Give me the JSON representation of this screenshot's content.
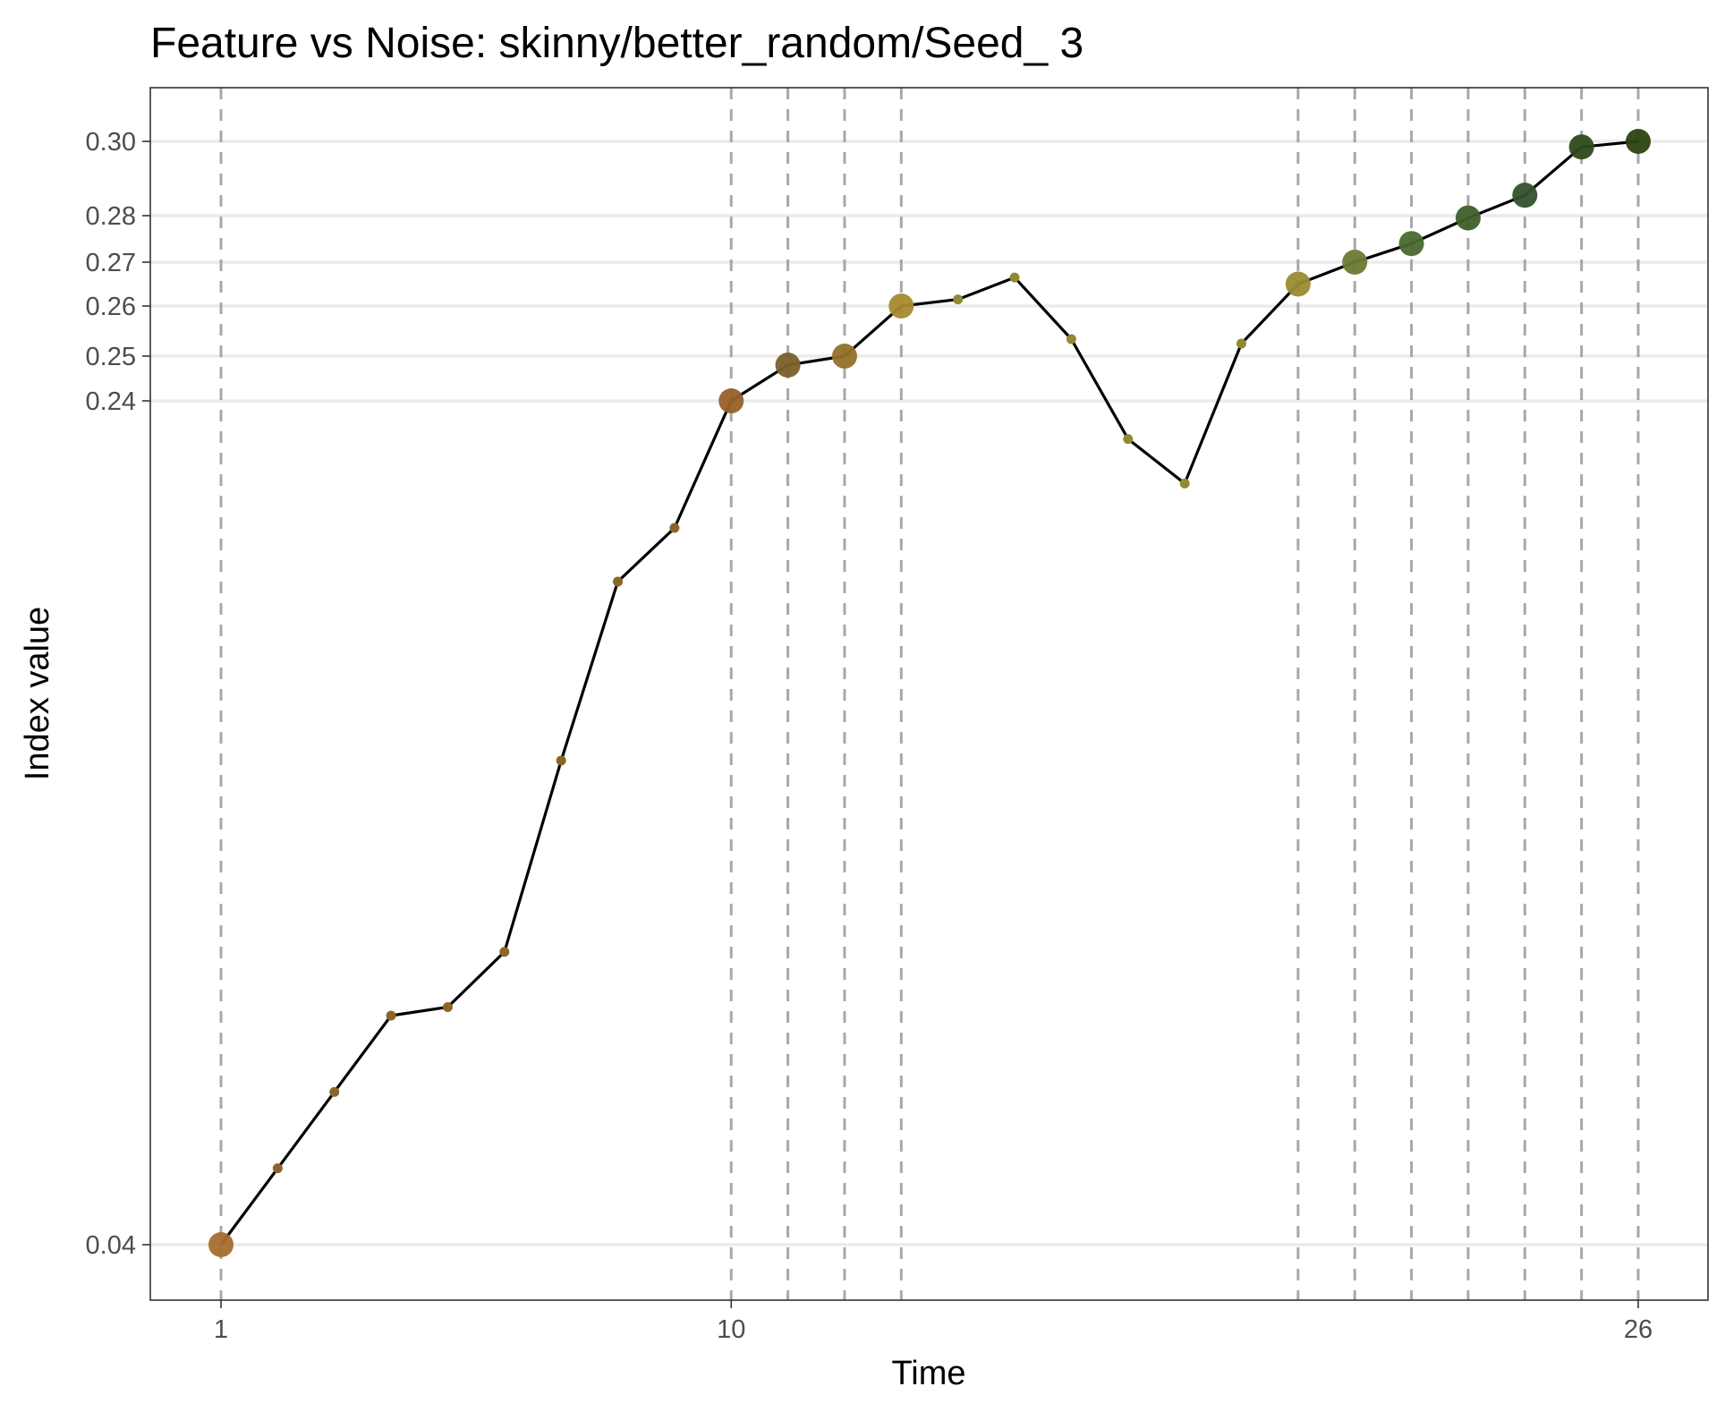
{
  "chart_data": {
    "type": "line",
    "title": "Feature vs Noise: skinny/better_random/Seed_ 3",
    "xlabel": "Time",
    "ylabel": "Index value",
    "x_ticks": [
      1,
      10,
      26
    ],
    "y_ticks": [
      "0.04",
      "0.24",
      "0.25",
      "0.26",
      "0.27",
      "0.28",
      "0.30"
    ],
    "xlim": [
      1,
      26
    ],
    "ylim": [
      0.04,
      0.3
    ],
    "y_scale": "nonlinear",
    "grid": "horizontal major at y tick values",
    "legend": "none",
    "series": [
      {
        "x": [
          1,
          2,
          3,
          4,
          5,
          6,
          7,
          8,
          9,
          10,
          11,
          12,
          13,
          14,
          15,
          16,
          17,
          18,
          19,
          20,
          21,
          22,
          23,
          24,
          25,
          26
        ],
        "y": [
          0.04,
          0.06,
          0.08,
          0.1,
          0.102,
          0.115,
          0.16,
          0.2,
          0.22,
          0.24,
          0.248,
          0.25,
          0.26,
          0.2615,
          0.2665,
          0.2534,
          0.234,
          0.227,
          0.2525,
          0.265,
          0.27,
          0.274,
          0.2795,
          0.2855,
          0.2985,
          0.3
        ],
        "highlighted": [
          1,
          10,
          11,
          12,
          13,
          20,
          21,
          22,
          23,
          24,
          25,
          26
        ],
        "point_colors": [
          "#a66d2d",
          "#8c6628",
          "#8c6628",
          "#8c6628",
          "#8c6628",
          "#8c6628",
          "#8c6628",
          "#8c6628",
          "#8c6628",
          "#97602a",
          "#7a5f2a",
          "#94702b",
          "#a58a2d",
          "#908a33",
          "#908a33",
          "#908a33",
          "#908a33",
          "#908a33",
          "#908a33",
          "#9a8a34",
          "#6b7a34",
          "#4a6a30",
          "#3f5f2a",
          "#33502a",
          "#2e4a1c",
          "#2c4310"
        ]
      }
    ],
    "vertical_dashed_lines_x": [
      1,
      10,
      11,
      12,
      13,
      20,
      21,
      22,
      23,
      24,
      25,
      26
    ]
  }
}
